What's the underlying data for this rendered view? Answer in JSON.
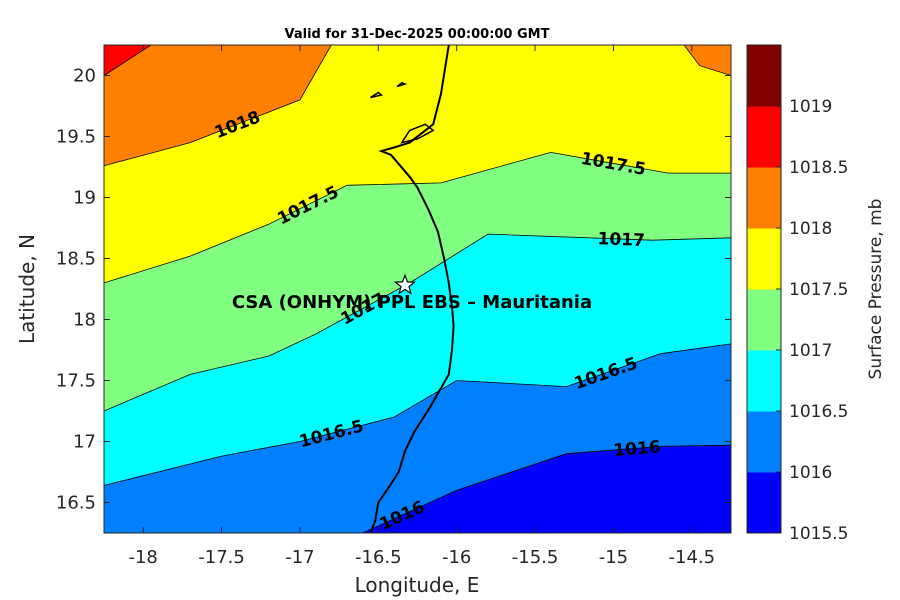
{
  "chart_data": {
    "type": "contour",
    "title": "Valid for 31-Dec-2025 00:00:00 GMT",
    "xlabel": "Longitude, E",
    "ylabel": "Latitude, N",
    "xlim": [
      -18.25,
      -14.25
    ],
    "ylim": [
      16.25,
      20.25
    ],
    "xticks": [
      -18,
      -17.5,
      -17,
      -16.5,
      -16,
      -15.5,
      -15,
      -14.5
    ],
    "xtick_labels": [
      "-18",
      "-17.5",
      "-17",
      "-16.5",
      "-16",
      "-15.5",
      "-15",
      "-14.5"
    ],
    "yticks": [
      16.5,
      17,
      17.5,
      18,
      18.5,
      19,
      19.5,
      20
    ],
    "ytick_labels": [
      "16.5",
      "17",
      "17.5",
      "18",
      "18.5",
      "19",
      "19.5",
      "20"
    ],
    "colorbar": {
      "label": "Surface Pressure, mb",
      "levels": [
        1015.5,
        1016,
        1016.5,
        1017,
        1017.5,
        1018,
        1018.5,
        1019
      ],
      "tick_labels": [
        "1015.5",
        "1016",
        "1016.5",
        "1017",
        "1017.5",
        "1018",
        "1018.5",
        "1019"
      ],
      "colors": [
        "#0000ff",
        "#0080ff",
        "#00ffff",
        "#80ff80",
        "#ffff00",
        "#ff8000",
        "#ff0000",
        "#800000"
      ]
    },
    "contours": [
      {
        "level": 1016,
        "label": "1016",
        "points": [
          [
            -16.6,
            16.25
          ],
          [
            -16.0,
            16.6
          ],
          [
            -15.3,
            16.9
          ],
          [
            -14.7,
            16.96
          ],
          [
            -14.25,
            16.97
          ]
        ]
      },
      {
        "level": 1016.5,
        "label": "1016.5",
        "points": [
          [
            -18.25,
            16.64
          ],
          [
            -17.5,
            16.88
          ],
          [
            -17.0,
            17.0
          ],
          [
            -16.4,
            17.2
          ],
          [
            -16.0,
            17.5
          ],
          [
            -15.3,
            17.45
          ],
          [
            -14.7,
            17.72
          ],
          [
            -14.25,
            17.8
          ]
        ]
      },
      {
        "level": 1017,
        "label": "1017",
        "points": [
          [
            -18.25,
            17.25
          ],
          [
            -17.7,
            17.55
          ],
          [
            -17.2,
            17.7
          ],
          [
            -16.9,
            17.88
          ],
          [
            -16.3,
            18.3
          ],
          [
            -15.8,
            18.7
          ],
          [
            -14.75,
            18.65
          ],
          [
            -14.25,
            18.67
          ]
        ]
      },
      {
        "level": 1017.5,
        "label": "1017.5",
        "points": [
          [
            -18.25,
            18.3
          ],
          [
            -17.7,
            18.52
          ],
          [
            -17.2,
            18.78
          ],
          [
            -16.7,
            19.1
          ],
          [
            -16.1,
            19.12
          ],
          [
            -15.4,
            19.37
          ],
          [
            -14.65,
            19.2
          ],
          [
            -14.25,
            19.2
          ]
        ]
      },
      {
        "level": 1018,
        "label": "1018",
        "points": [
          [
            -18.25,
            19.26
          ],
          [
            -17.7,
            19.45
          ],
          [
            -17.0,
            19.8
          ],
          [
            -16.8,
            20.25
          ]
        ]
      },
      {
        "level": 1018,
        "label": "",
        "points": [
          [
            -14.55,
            20.25
          ],
          [
            -14.45,
            20.08
          ],
          [
            -14.25,
            20.0
          ]
        ]
      },
      {
        "level": 1018.5,
        "label": "",
        "points": [
          [
            -18.25,
            20.0
          ],
          [
            -17.95,
            20.25
          ]
        ]
      }
    ],
    "coastline": {
      "mainland": [
        [
          -16.55,
          16.25
        ],
        [
          -16.52,
          16.35
        ],
        [
          -16.5,
          16.5
        ],
        [
          -16.42,
          16.65
        ],
        [
          -16.37,
          16.75
        ],
        [
          -16.33,
          16.92
        ],
        [
          -16.27,
          17.08
        ],
        [
          -16.17,
          17.28
        ],
        [
          -16.05,
          17.55
        ],
        [
          -16.03,
          17.75
        ],
        [
          -16.02,
          17.95
        ],
        [
          -16.03,
          18.1
        ],
        [
          -16.05,
          18.3
        ],
        [
          -16.08,
          18.5
        ],
        [
          -16.12,
          18.72
        ],
        [
          -16.18,
          18.9
        ],
        [
          -16.25,
          19.08
        ],
        [
          -16.3,
          19.17
        ],
        [
          -16.42,
          19.35
        ],
        [
          -16.48,
          19.38
        ],
        [
          -16.4,
          19.41
        ],
        [
          -16.3,
          19.45
        ],
        [
          -16.15,
          19.6
        ],
        [
          -16.1,
          19.85
        ],
        [
          -16.05,
          20.25
        ]
      ],
      "islands": [
        [
          [
            -16.3,
            19.55
          ],
          [
            -16.2,
            19.6
          ],
          [
            -16.15,
            19.55
          ],
          [
            -16.25,
            19.48
          ],
          [
            -16.35,
            19.45
          ],
          [
            -16.3,
            19.55
          ]
        ],
        [
          [
            -16.55,
            19.82
          ],
          [
            -16.48,
            19.84
          ],
          [
            -16.5,
            19.86
          ],
          [
            -16.55,
            19.82
          ]
        ],
        [
          [
            -16.38,
            19.91
          ],
          [
            -16.33,
            19.93
          ],
          [
            -16.35,
            19.94
          ],
          [
            -16.38,
            19.91
          ]
        ]
      ]
    },
    "site": {
      "name": "CSA (ONHYM) PPL EBS  – Mauritania",
      "lon": -16.33,
      "lat": 18.28
    }
  }
}
